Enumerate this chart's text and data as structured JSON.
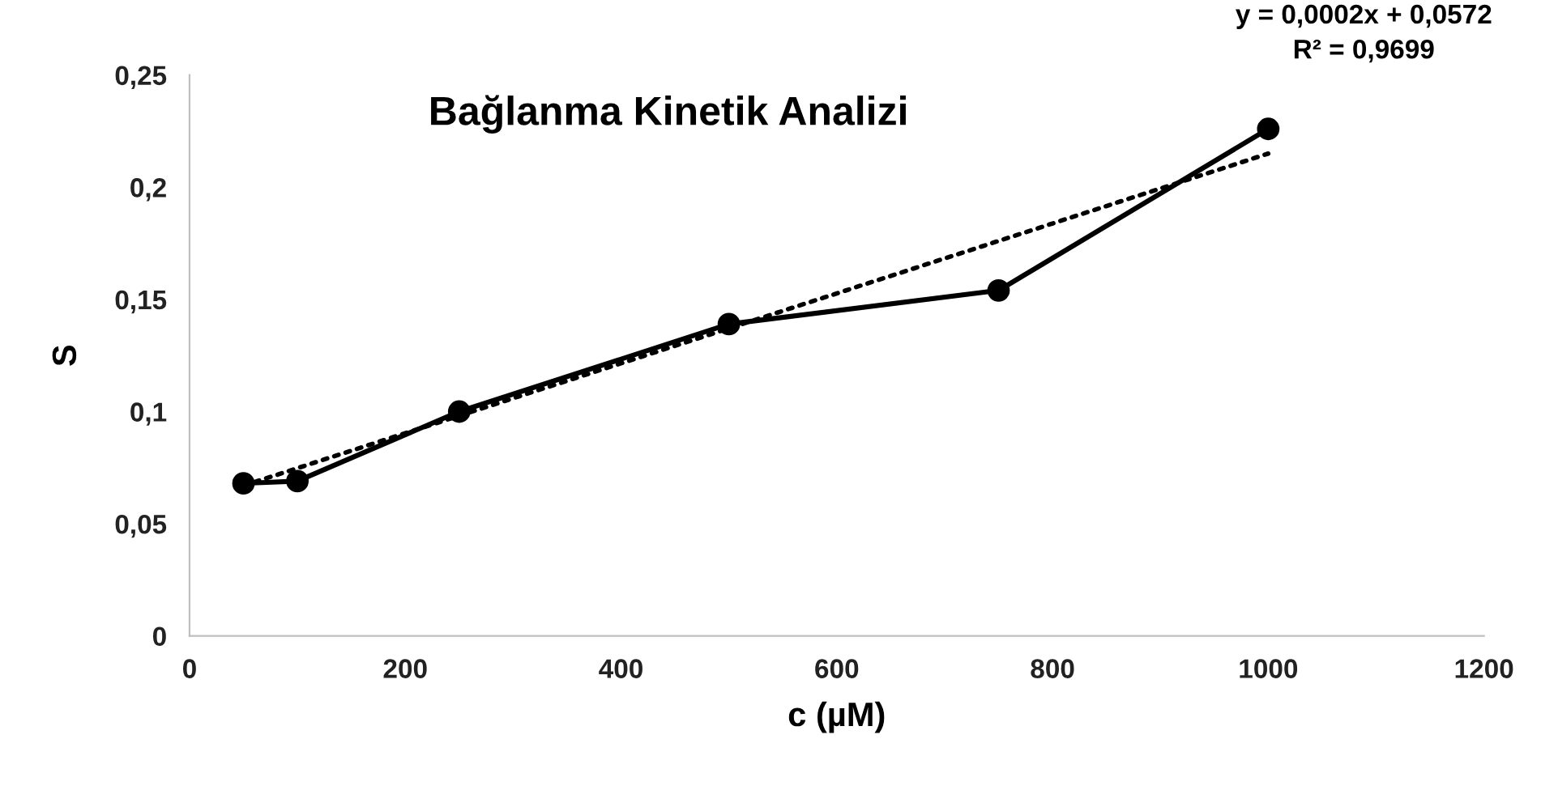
{
  "chart_data": {
    "type": "line",
    "title": "Bağlanma Kinetik Analizi",
    "xlabel": "c (µM)",
    "ylabel": "S",
    "x": [
      50,
      100,
      250,
      500,
      750,
      1000
    ],
    "series": [
      {
        "color": "#000000",
        "values": [
          0.068,
          0.069,
          0.1,
          0.139,
          0.154,
          0.226
        ],
        "marker": "circle",
        "line_style": "solid"
      },
      {
        "type": "line",
        "color": "#000000",
        "x": [
          50,
          1000
        ],
        "values": [
          0.067,
          0.215
        ],
        "marker": "none",
        "line_style": "dotted"
      }
    ],
    "xlim": [
      0,
      1200
    ],
    "xticks": [
      0,
      200,
      400,
      600,
      800,
      1000,
      1200
    ],
    "ylim": [
      0,
      0.25
    ],
    "yticks": [
      {
        "value": 0,
        "label": "0"
      },
      {
        "value": 0.05,
        "label": "0,05"
      },
      {
        "value": 0.1,
        "label": "0,1"
      },
      {
        "value": 0.15,
        "label": "0,15"
      },
      {
        "value": 0.2,
        "label": "0,2"
      },
      {
        "value": 0.25,
        "label": "0,25"
      }
    ],
    "annotations": [
      "y = 0,0002x + 0,0572\nR² = 0,9699"
    ],
    "grid": false,
    "legend": false
  }
}
